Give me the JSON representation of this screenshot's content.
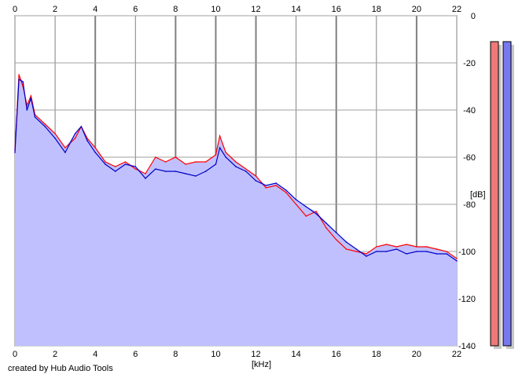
{
  "credit": "created by Hub Audio Tools",
  "chart_data": {
    "type": "line",
    "xlabel": "[kHz]",
    "ylabel": "[dB]",
    "xlim": [
      0,
      22
    ],
    "ylim": [
      -140,
      0
    ],
    "x_ticks": [
      "0",
      "2",
      "4",
      "6",
      "8",
      "10",
      "12",
      "14",
      "16",
      "18",
      "20",
      "22"
    ],
    "y_ticks": [
      "0",
      "-20",
      "-40",
      "-60",
      "-80",
      "-100",
      "-120",
      "-140"
    ],
    "grid": true,
    "fill_color": "#c0c0ff",
    "series": [
      {
        "color": "#ff0000",
        "x": [
          0,
          0.2,
          0.4,
          0.6,
          0.8,
          1.0,
          1.5,
          2.0,
          2.5,
          3.0,
          3.3,
          3.6,
          4.0,
          4.5,
          5.0,
          5.5,
          6.0,
          6.5,
          7.0,
          7.5,
          8.0,
          8.5,
          9.0,
          9.5,
          10.0,
          10.2,
          10.5,
          11.0,
          11.5,
          12.0,
          12.5,
          13.0,
          13.5,
          14.0,
          14.5,
          15.0,
          15.5,
          16.0,
          16.5,
          17.0,
          17.5,
          18.0,
          18.5,
          19.0,
          19.5,
          20.0,
          20.5,
          21.0,
          21.5,
          22.0
        ],
        "y": [
          -57,
          -25,
          -30,
          -38,
          -34,
          -42,
          -46,
          -50,
          -56,
          -52,
          -47,
          -52,
          -56,
          -62,
          -64,
          -62,
          -65,
          -67,
          -60,
          -62,
          -60,
          -63,
          -62,
          -62,
          -59,
          -51,
          -58,
          -62,
          -65,
          -68,
          -73,
          -72,
          -75,
          -80,
          -85,
          -83,
          -90,
          -95,
          -99,
          -100,
          -101,
          -98,
          -97,
          -98,
          -97,
          -98,
          -98,
          -99,
          -100,
          -103
        ]
      },
      {
        "color": "#0000c8",
        "x": [
          0,
          0.2,
          0.4,
          0.6,
          0.8,
          1.0,
          1.5,
          2.0,
          2.5,
          3.0,
          3.3,
          3.6,
          4.0,
          4.5,
          5.0,
          5.5,
          6.0,
          6.5,
          7.0,
          7.5,
          8.0,
          8.5,
          9.0,
          9.5,
          10.0,
          10.2,
          10.5,
          11.0,
          11.5,
          12.0,
          12.5,
          13.0,
          13.5,
          14.0,
          14.5,
          15.0,
          15.5,
          16.0,
          16.5,
          17.0,
          17.5,
          18.0,
          18.5,
          19.0,
          19.5,
          20.0,
          20.5,
          21.0,
          21.5,
          22.0
        ],
        "y": [
          -58,
          -27,
          -28,
          -40,
          -35,
          -43,
          -47,
          -52,
          -58,
          -50,
          -47,
          -53,
          -58,
          -63,
          -66,
          -63,
          -64,
          -69,
          -65,
          -66,
          -66,
          -67,
          -68,
          -66,
          -63,
          -56,
          -60,
          -64,
          -66,
          -70,
          -72,
          -71,
          -74,
          -78,
          -81,
          -84,
          -88,
          -92,
          -96,
          -99,
          -102,
          -100,
          -100,
          -99,
          -101,
          -100,
          -100,
          -101,
          -101,
          -104
        ]
      }
    ],
    "level_meters": [
      {
        "color": "#f07878",
        "value_db": -11
      },
      {
        "color": "#7878f0",
        "value_db": -11
      }
    ]
  }
}
